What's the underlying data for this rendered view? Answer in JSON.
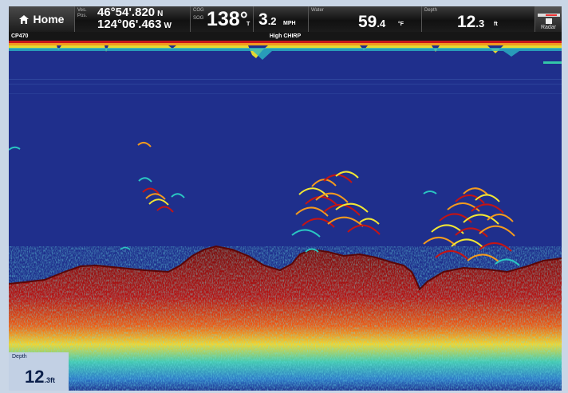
{
  "topbar": {
    "home_label": "Home",
    "ves_pos_label": [
      "Ves.",
      "Pos."
    ],
    "lat": "46°54'.820",
    "lat_hemi": "N",
    "lon": "124°06'.463",
    "lon_hemi": "W",
    "cog_sog_label": [
      "COG",
      "SOG"
    ],
    "cog_value": "138°",
    "cog_unit": "T",
    "sog_value": "3",
    "sog_decimal": ".2",
    "sog_unit": "MPH",
    "water_label": "Water",
    "water_value": "59",
    "water_decimal": ".4",
    "water_unit": "°F",
    "depth_label": "Depth",
    "depth_value": "12",
    "depth_decimal": ".3",
    "depth_unit": "ft",
    "radar_label": "Radar",
    "icons": [
      "home-icon",
      "radar-icon"
    ]
  },
  "status_strip": {
    "left": "CP470",
    "center": "High CHIRP"
  },
  "depth_box": {
    "label": "Depth",
    "value": "12",
    "decimal": ".3",
    "unit": "ft"
  },
  "sonar": {
    "colors": {
      "water": "#1f2f8c",
      "bottom": "#8e0f0f",
      "strong": "#c41414",
      "mid": "#f39a1e",
      "weak": "#f2e634",
      "faint": "#27c6c2"
    },
    "fish_arches": 3
  }
}
